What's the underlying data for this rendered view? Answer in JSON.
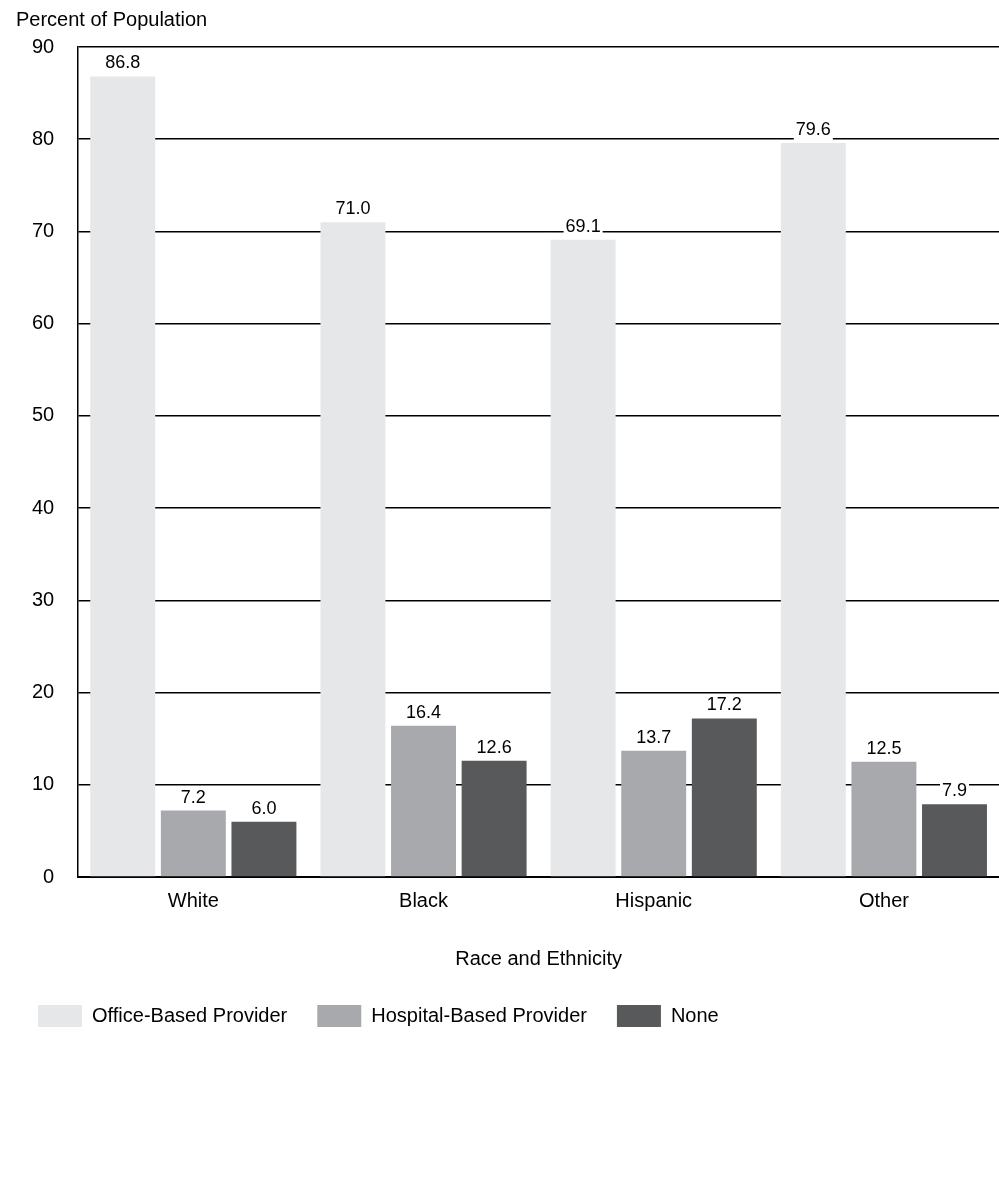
{
  "chart_data": {
    "type": "bar",
    "xlabel": "Race and Ethnicity",
    "ylabel": "Percent of Population",
    "categories": [
      "White",
      "Black",
      "Hispanic",
      "Other"
    ],
    "series": [
      {
        "name": "Office-Based Provider",
        "color": "#e6e7e8",
        "values": [
          86.8,
          71.0,
          69.1,
          79.6
        ],
        "value_labels": [
          "86.8",
          "71.0",
          "69.1",
          "79.6"
        ]
      },
      {
        "name": "Hospital-Based Provider",
        "color": "#a7a9ac",
        "values": [
          7.2,
          16.4,
          13.7,
          12.5
        ],
        "value_labels": [
          "7.2",
          "16.4",
          "13.7",
          "12.5"
        ]
      },
      {
        "name": "None",
        "color": "#58595b",
        "values": [
          6.0,
          12.6,
          17.2,
          7.9
        ],
        "value_labels": [
          "6.0",
          "12.6",
          "17.2",
          "7.9"
        ]
      }
    ],
    "ylim": [
      0,
      90
    ],
    "yticks": [
      0,
      10,
      20,
      30,
      40,
      50,
      60,
      70,
      80,
      90
    ],
    "grid": "y",
    "legend": "bottom"
  }
}
